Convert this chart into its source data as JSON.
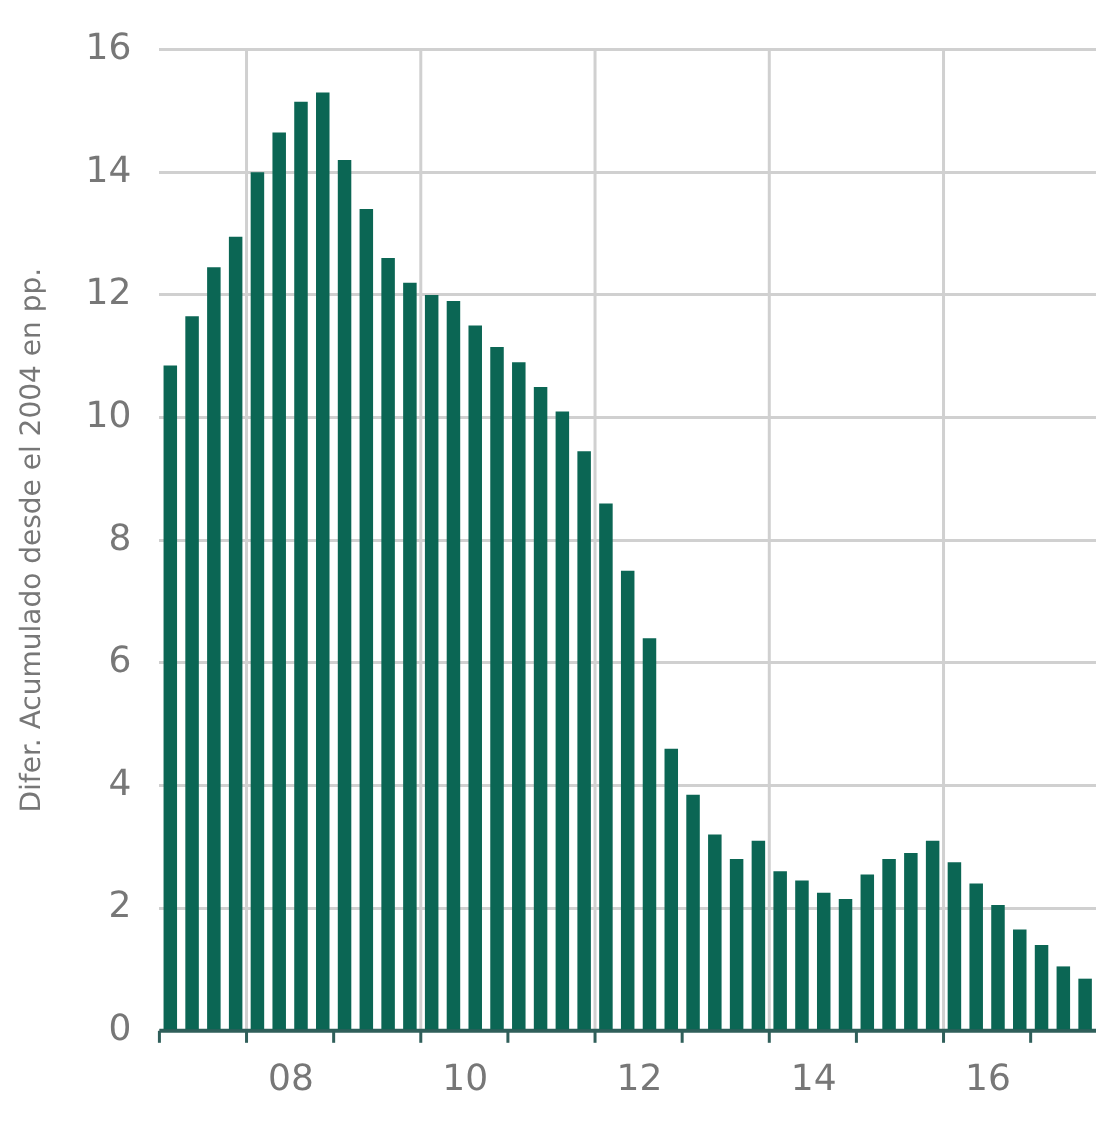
{
  "chart_data": {
    "type": "bar",
    "ylabel": "Difer. Acumulado desde el 2004 en pp.",
    "categories": [
      null,
      null,
      null,
      null,
      null,
      null,
      "08",
      null,
      null,
      null,
      null,
      null,
      null,
      null,
      "10",
      null,
      null,
      null,
      null,
      null,
      null,
      null,
      "12",
      null,
      null,
      null,
      null,
      null,
      null,
      null,
      "14",
      null,
      null,
      null,
      null,
      null,
      null,
      null,
      "16",
      null,
      null,
      null,
      null
    ],
    "values": [
      10.85,
      11.65,
      12.45,
      12.95,
      14.0,
      14.65,
      15.15,
      15.3,
      14.2,
      13.4,
      12.6,
      12.2,
      12.0,
      11.9,
      11.5,
      11.15,
      10.9,
      10.5,
      10.1,
      9.45,
      8.6,
      7.5,
      6.4,
      4.6,
      3.85,
      3.2,
      2.8,
      3.1,
      2.6,
      2.45,
      2.25,
      2.15,
      2.55,
      2.8,
      2.9,
      3.1,
      2.75,
      2.4,
      2.05,
      1.65,
      1.4,
      1.05,
      0.85
    ],
    "color": "#0b6654",
    "ylim": [
      0,
      16
    ],
    "yticks": [
      0,
      2,
      4,
      6,
      8,
      10,
      12,
      14,
      16
    ],
    "grid": true
  }
}
